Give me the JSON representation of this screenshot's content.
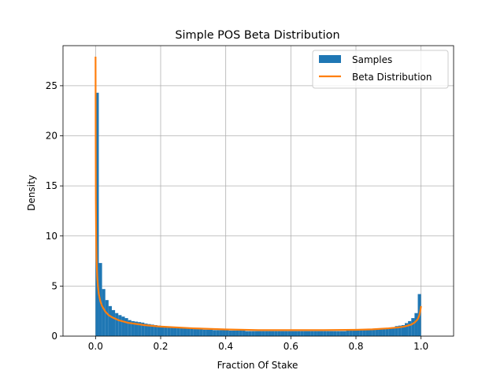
{
  "chart_data": {
    "type": "bar",
    "title": "Simple POS Beta Distribution",
    "xlabel": "Fraction Of Stake",
    "ylabel": "Density",
    "xlim": [
      -0.1,
      1.1
    ],
    "ylim": [
      0,
      29
    ],
    "xticks": [
      0.0,
      0.2,
      0.4,
      0.6,
      0.8,
      1.0
    ],
    "xtick_labels": [
      "0.0",
      "0.2",
      "0.4",
      "0.6",
      "0.8",
      "1.0"
    ],
    "yticks": [
      0,
      5,
      10,
      15,
      20,
      25
    ],
    "ytick_labels": [
      "0",
      "5",
      "10",
      "15",
      "20",
      "25"
    ],
    "grid": true,
    "legend_position": "top-right",
    "series": [
      {
        "name": "Samples",
        "kind": "histogram",
        "color": "#1f77b4",
        "bin_width": 0.01,
        "bin_start": 0.0,
        "values": [
          24.3,
          7.3,
          4.7,
          3.6,
          3.0,
          2.6,
          2.3,
          2.1,
          1.95,
          1.8,
          1.6,
          1.5,
          1.45,
          1.4,
          1.35,
          1.25,
          1.2,
          1.15,
          1.1,
          1.05,
          1.0,
          0.95,
          0.9,
          0.9,
          0.85,
          0.85,
          0.8,
          0.8,
          0.75,
          0.75,
          0.7,
          0.7,
          0.7,
          0.65,
          0.65,
          0.65,
          0.6,
          0.6,
          0.6,
          0.6,
          0.6,
          0.55,
          0.55,
          0.55,
          0.55,
          0.55,
          0.5,
          0.5,
          0.5,
          0.5,
          0.5,
          0.5,
          0.5,
          0.5,
          0.5,
          0.5,
          0.5,
          0.5,
          0.5,
          0.5,
          0.5,
          0.5,
          0.5,
          0.5,
          0.5,
          0.5,
          0.5,
          0.5,
          0.5,
          0.5,
          0.5,
          0.5,
          0.5,
          0.5,
          0.5,
          0.5,
          0.5,
          0.55,
          0.55,
          0.55,
          0.55,
          0.6,
          0.6,
          0.6,
          0.65,
          0.65,
          0.7,
          0.7,
          0.75,
          0.8,
          0.85,
          0.9,
          1.0,
          1.05,
          1.1,
          1.3,
          1.5,
          1.8,
          2.3,
          4.2
        ]
      },
      {
        "name": "Beta Distribution",
        "kind": "line",
        "color": "#ff7f0e",
        "x": [
          0.0,
          0.0005,
          0.001,
          0.002,
          0.003,
          0.005,
          0.0075,
          0.01,
          0.015,
          0.02,
          0.03,
          0.04,
          0.05,
          0.07,
          0.1,
          0.15,
          0.2,
          0.3,
          0.4,
          0.5,
          0.6,
          0.7,
          0.8,
          0.85,
          0.9,
          0.93,
          0.95,
          0.97,
          0.98,
          0.99,
          0.995,
          0.9975,
          1.0
        ],
        "y": [
          27.9,
          19.0,
          13.5,
          9.6,
          7.8,
          6.0,
          4.9,
          4.2,
          3.45,
          3.0,
          2.45,
          2.1,
          1.9,
          1.6,
          1.33,
          1.1,
          0.95,
          0.78,
          0.67,
          0.6,
          0.6,
          0.6,
          0.63,
          0.68,
          0.78,
          0.87,
          0.97,
          1.15,
          1.35,
          1.7,
          2.1,
          2.5,
          3.0
        ]
      }
    ]
  }
}
